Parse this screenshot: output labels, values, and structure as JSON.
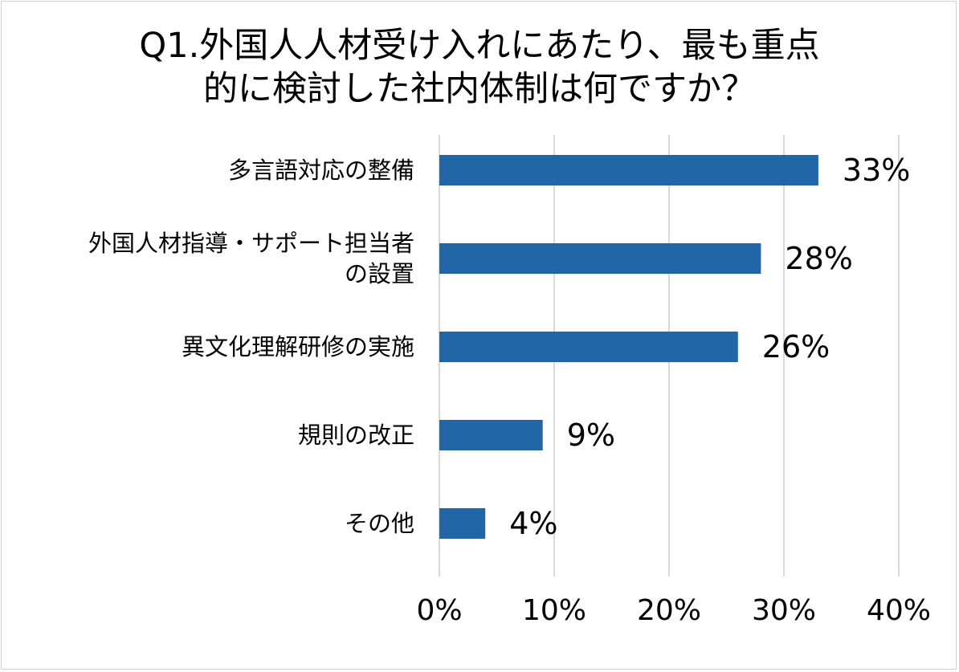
{
  "chart_data": {
    "type": "bar",
    "orientation": "horizontal",
    "title_lines": [
      "Q1.外国人人材受け入れにあたり、最も重点",
      "的に検討した社内体制は何ですか？"
    ],
    "categories": [
      [
        "多言語対応の整備"
      ],
      [
        "外国人材指導・サポート担当者",
        "の設置"
      ],
      [
        "異文化理解研修の実施"
      ],
      [
        "規則の改正"
      ],
      [
        "その他"
      ]
    ],
    "values": [
      33,
      28,
      26,
      9,
      4
    ],
    "value_labels": [
      "33%",
      "28%",
      "26%",
      "9%",
      "4%"
    ],
    "xlim": [
      0,
      40
    ],
    "x_ticks": [
      0,
      10,
      20,
      30,
      40
    ],
    "x_tick_labels": [
      "0%",
      "10%",
      "20%",
      "30%",
      "40%"
    ],
    "grid": "vertical",
    "legend": "none",
    "bar_color": "#2166a6",
    "grid_color": "#d9d9d9"
  }
}
